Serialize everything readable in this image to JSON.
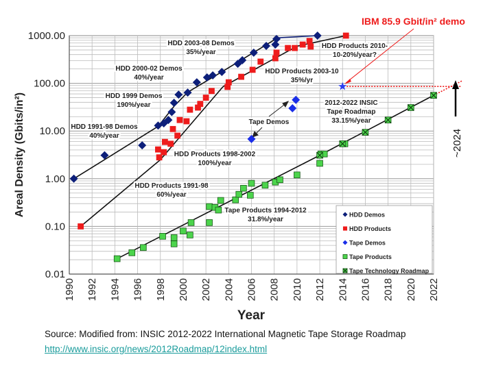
{
  "chart_data": {
    "type": "scatter",
    "xlabel": "Year",
    "ylabel": "Areal Density (Gbits/in²)",
    "xlim": [
      1990,
      2022
    ],
    "ylim": [
      0.01,
      1000
    ],
    "y_scale": "log",
    "grid": true,
    "x_ticks": [
      "1990",
      "1992",
      "1994",
      "1996",
      "1998",
      "2000",
      "2002",
      "2004",
      "2006",
      "2008",
      "2010",
      "2012",
      "2014",
      "2016",
      "2018",
      "2020",
      "2022"
    ],
    "y_ticks": [
      "1000.00",
      "100.00",
      "10.00",
      "1.00",
      "0.10",
      "0.01"
    ],
    "legend_position": "bottom-right",
    "series": [
      {
        "name": "HDD Demos",
        "color": "#0d1f7a",
        "marker": "diamond",
        "points": [
          [
            1990.4,
            1.0
          ],
          [
            1993.1,
            3.1
          ],
          [
            1996.4,
            5.0
          ],
          [
            1997.8,
            13
          ],
          [
            1998.3,
            14.5
          ],
          [
            1998.7,
            17
          ],
          [
            1999.0,
            25
          ],
          [
            1999.2,
            39
          ],
          [
            1999.6,
            58
          ],
          [
            2000.4,
            64
          ],
          [
            2001.2,
            105
          ],
          [
            2002.1,
            133
          ],
          [
            2002.6,
            147
          ],
          [
            2003.4,
            173
          ],
          [
            2004.8,
            257
          ],
          [
            2005.2,
            305
          ],
          [
            2006.2,
            440
          ],
          [
            2007.3,
            610
          ],
          [
            2008.1,
            650
          ],
          [
            2008.2,
            850
          ],
          [
            2011.8,
            1000
          ]
        ]
      },
      {
        "name": "HDD Products",
        "color": "#ee1c1c",
        "marker": "square",
        "points": [
          [
            1991.0,
            0.1
          ],
          [
            1997.8,
            4.1
          ],
          [
            1997.9,
            2.8
          ],
          [
            1998.3,
            3.6
          ],
          [
            1998.4,
            5.9
          ],
          [
            1998.9,
            5.4
          ],
          [
            1999.1,
            11
          ],
          [
            1999.5,
            8
          ],
          [
            1999.7,
            17
          ],
          [
            2000.3,
            16
          ],
          [
            2000.6,
            28
          ],
          [
            2001.3,
            31
          ],
          [
            2001.5,
            37
          ],
          [
            2002.0,
            50
          ],
          [
            2002.5,
            69
          ],
          [
            2003.9,
            84
          ],
          [
            2004.0,
            105
          ],
          [
            2005.1,
            137
          ],
          [
            2006.1,
            192
          ],
          [
            2006.8,
            285
          ],
          [
            2008.1,
            335
          ],
          [
            2008.2,
            440
          ],
          [
            2009.2,
            550
          ],
          [
            2009.8,
            550
          ],
          [
            2010.5,
            650
          ],
          [
            2011.1,
            770
          ],
          [
            2011.2,
            590
          ],
          [
            2014.3,
            1000
          ]
        ]
      },
      {
        "name": "Tape Demos",
        "color": "#1a2ee8",
        "marker": "diamond",
        "points": [
          [
            2006.0,
            6.8
          ],
          [
            2009.6,
            30
          ],
          [
            2009.9,
            45
          ]
        ]
      },
      {
        "name": "Tape Products",
        "color": "#4cd44c",
        "marker": "square",
        "points": [
          [
            1994.2,
            0.021
          ],
          [
            1995.5,
            0.028
          ],
          [
            1996.5,
            0.036
          ],
          [
            1998.2,
            0.062
          ],
          [
            1999.2,
            0.058
          ],
          [
            1999.2,
            0.043
          ],
          [
            2000.0,
            0.08
          ],
          [
            2000.6,
            0.066
          ],
          [
            2000.7,
            0.12
          ],
          [
            2002.3,
            0.12
          ],
          [
            2002.3,
            0.26
          ],
          [
            2002.8,
            0.25
          ],
          [
            2003.1,
            0.22
          ],
          [
            2003.3,
            0.35
          ],
          [
            2004.6,
            0.36
          ],
          [
            2004.9,
            0.47
          ],
          [
            2005.3,
            0.63
          ],
          [
            2005.9,
            0.45
          ],
          [
            2006.0,
            0.8
          ],
          [
            2007.2,
            0.73
          ],
          [
            2008.1,
            0.85
          ],
          [
            2008.5,
            0.95
          ],
          [
            2010.0,
            1.2
          ],
          [
            2012.1,
            3.3
          ],
          [
            2012.4,
            3.3
          ],
          [
            2012.0,
            2.1
          ],
          [
            2014.2,
            5.4
          ]
        ]
      },
      {
        "name": "Tape Technology Roadmap",
        "color": "#4cd44c",
        "marker": "x-square",
        "points": [
          [
            2012,
            3.1
          ],
          [
            2014,
            5.4
          ],
          [
            2016,
            9.4
          ],
          [
            2018,
            17
          ],
          [
            2020,
            31
          ],
          [
            2022,
            56
          ]
        ]
      }
    ],
    "trend_lines": [
      {
        "label": [
          "HDD 1991-98 Demos",
          "40%/year"
        ],
        "color": "#111",
        "points": [
          [
            1990.4,
            1.0
          ],
          [
            1997.8,
            12.5
          ]
        ]
      },
      {
        "label": [
          "HDD 1999 Demos",
          "190%/year"
        ],
        "color": "#111",
        "points": [
          [
            1997.8,
            12.5
          ],
          [
            1999.2,
            33
          ],
          [
            2000.4,
            65
          ]
        ]
      },
      {
        "label": [
          "HDD 2000-02 Demos",
          "40%/year"
        ],
        "color": "#111",
        "points": [
          [
            2000.4,
            65
          ],
          [
            2003.5,
            180
          ]
        ]
      },
      {
        "label": [
          "HDD  2003-08 Demos",
          "35%/year"
        ],
        "color": "#111",
        "points": [
          [
            2003.5,
            180
          ],
          [
            2008.3,
            900
          ]
        ]
      },
      {
        "label": [],
        "color": "#0d1f7a",
        "points": [
          [
            2008.3,
            900
          ],
          [
            2011.8,
            1000
          ]
        ]
      },
      {
        "label": [
          "HDD Products 1991-98",
          "60%/year"
        ],
        "color": "#111",
        "points": [
          [
            1991.0,
            0.1
          ],
          [
            1998.0,
            2.5
          ]
        ]
      },
      {
        "label": [
          "HDD Products 1998-2002",
          "100%/year"
        ],
        "color": "#111",
        "points": [
          [
            1998.0,
            2.5
          ],
          [
            2003.5,
            85
          ]
        ]
      },
      {
        "label": [
          "HDD Products 2003-10",
          "35%/yr"
        ],
        "color": "#111",
        "points": [
          [
            2003.5,
            85
          ],
          [
            2010.0,
            600
          ]
        ]
      },
      {
        "label": [
          "HDD Products 2010-",
          "10-20%/year?"
        ],
        "color": "#111",
        "points": [
          [
            2010.0,
            600
          ],
          [
            2014.3,
            1000
          ]
        ]
      },
      {
        "label": [
          "Tape Products 1994-2012",
          "31.8%/year"
        ],
        "color": "#111",
        "points": [
          [
            1994.2,
            0.021
          ],
          [
            2012.0,
            3.1
          ]
        ]
      },
      {
        "label": [
          "2012-2022 INSIC",
          "Tape Roadmap",
          "33.15%/year"
        ],
        "color": "#111",
        "points": [
          [
            2012.0,
            3.1
          ],
          [
            2022.0,
            56
          ]
        ]
      }
    ],
    "annotations": {
      "ibm_demo": {
        "text": "IBM 85.9 Gbit/in² demo",
        "year": 2014,
        "value": 85.9,
        "color": "#ee1c1c"
      },
      "tape_demos": "Tape Demos",
      "crossover": "~2024"
    }
  },
  "source": {
    "text": "Source: Modified from: INSIC 2012-2022 International Magnetic Tape Storage Roadmap",
    "link": "http://www.insic.org/news/2012Roadmap/12index.html"
  }
}
